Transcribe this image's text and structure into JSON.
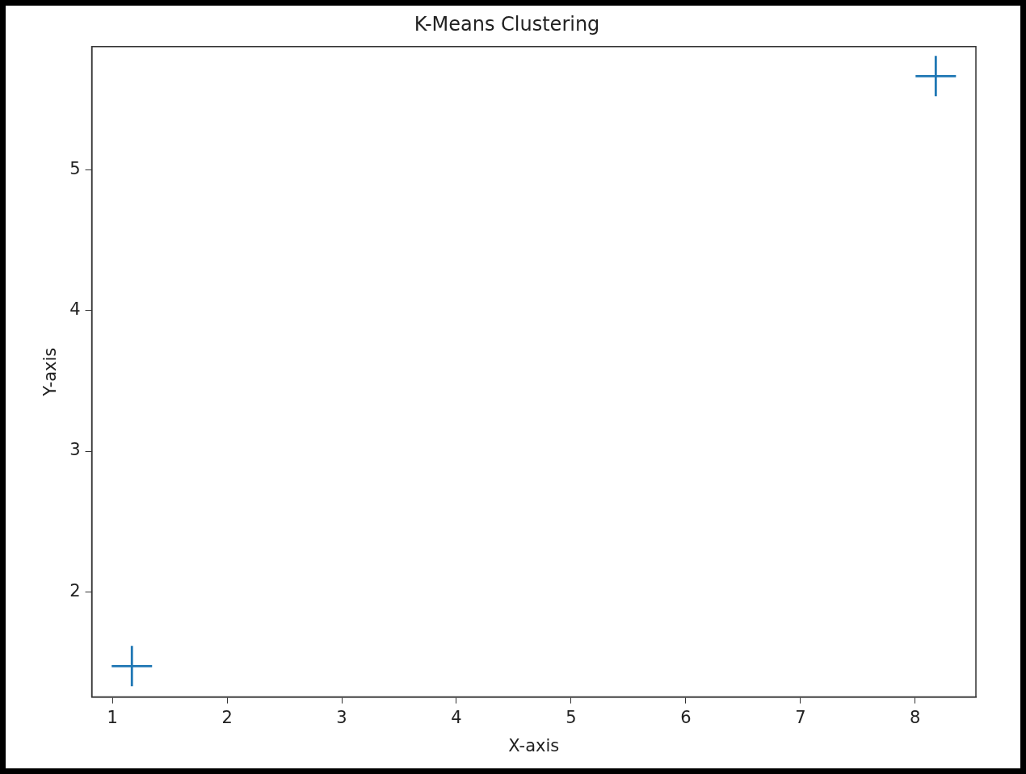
{
  "chart_data": {
    "type": "scatter",
    "title": "K-Means Clustering",
    "xlabel": "X-axis",
    "ylabel": "Y-axis",
    "series": [
      {
        "color": "#1f77b4",
        "x": [
          1.17,
          8.18
        ],
        "values": [
          1.47,
          5.67
        ]
      }
    ],
    "xlim": [
      0.82,
      8.53
    ],
    "ylim": [
      1.25,
      5.88
    ],
    "xticks": [
      1,
      2,
      3,
      4,
      5,
      6,
      7,
      8
    ],
    "yticks": [
      2,
      3,
      4,
      5
    ],
    "marker": "cross",
    "grid": false,
    "legend": false
  }
}
